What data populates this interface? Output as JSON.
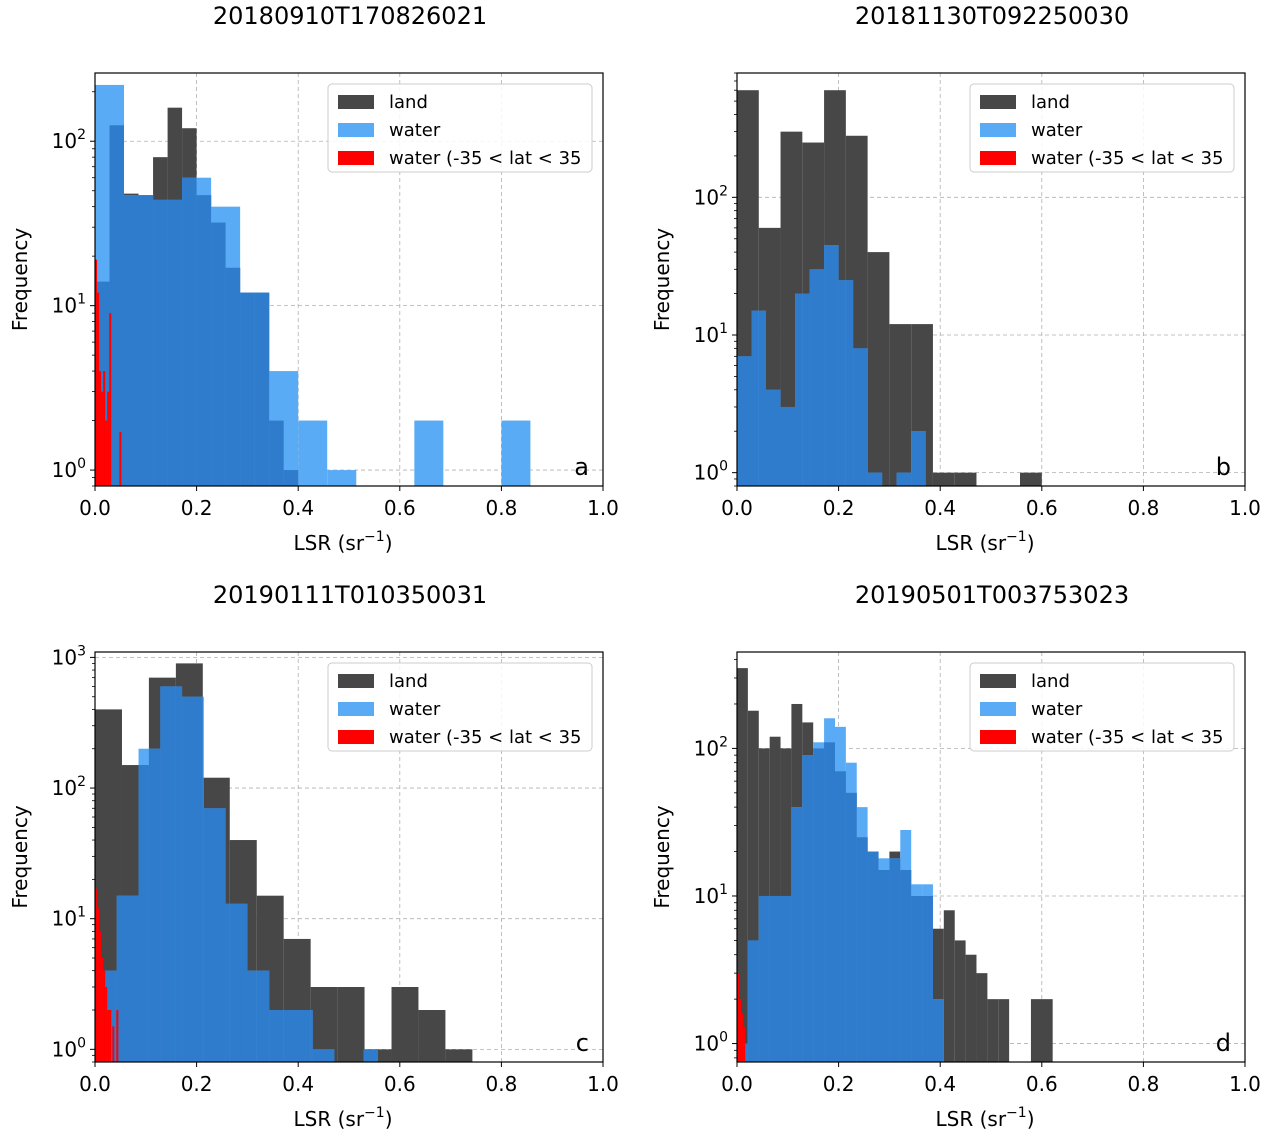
{
  "chart_data": [
    {
      "type": "bar",
      "title": "20180910T170826021",
      "panel_label": "a",
      "xlabel": "LSR (sr",
      "xlabel_sup": "−1",
      "xlabel_close": ")",
      "ylabel": "Frequency",
      "xlim": [
        0,
        1.0
      ],
      "ylim_log": [
        0.8,
        260
      ],
      "y_scale": "log",
      "grid": true,
      "legend_position": "top-right",
      "x_ticks": [
        "0.0",
        "0.2",
        "0.4",
        "0.6",
        "0.8",
        "1.0"
      ],
      "y_ticks": [
        {
          "base": "10",
          "exp": "0",
          "value": 1
        },
        {
          "base": "10",
          "exp": "1",
          "value": 10
        },
        {
          "base": "10",
          "exp": "2",
          "value": 100
        }
      ],
      "series": [
        {
          "name": "land",
          "color": "#474747",
          "bins": [
            [
              0.0,
              0.0286,
              14
            ],
            [
              0.0286,
              0.0571,
              125
            ],
            [
              0.0571,
              0.0857,
              48
            ],
            [
              0.0857,
              0.1143,
              47
            ],
            [
              0.1143,
              0.1429,
              80
            ],
            [
              0.1429,
              0.1714,
              160
            ],
            [
              0.1714,
              0.2,
              120
            ],
            [
              0.2,
              0.2286,
              47
            ],
            [
              0.2286,
              0.2571,
              32
            ],
            [
              0.2571,
              0.2857,
              17
            ],
            [
              0.2857,
              0.3143,
              12
            ],
            [
              0.3143,
              0.3429,
              12
            ],
            [
              0.3429,
              0.3714,
              2
            ],
            [
              0.3714,
              0.4,
              1
            ]
          ]
        },
        {
          "name": "water",
          "color": "#5aabf5",
          "bins": [
            [
              0.0,
              0.0571,
              220
            ],
            [
              0.0571,
              0.1143,
              47
            ],
            [
              0.1143,
              0.1714,
              44
            ],
            [
              0.1714,
              0.2286,
              60
            ],
            [
              0.2286,
              0.2857,
              40
            ],
            [
              0.2857,
              0.3429,
              12
            ],
            [
              0.3429,
              0.4,
              4
            ],
            [
              0.4,
              0.4571,
              2
            ],
            [
              0.4571,
              0.5143,
              1
            ],
            [
              0.6286,
              0.6857,
              2
            ],
            [
              0.8,
              0.8571,
              2
            ]
          ]
        },
        {
          "name": "water (-35 < lat < 35",
          "color": "#ff0000",
          "bins": [
            [
              0.0,
              0.004,
              19
            ],
            [
              0.004,
              0.008,
              12
            ],
            [
              0.008,
              0.012,
              4
            ],
            [
              0.012,
              0.016,
              3
            ],
            [
              0.016,
              0.02,
              4
            ],
            [
              0.02,
              0.024,
              2
            ],
            [
              0.024,
              0.028,
              3
            ],
            [
              0.028,
              0.032,
              9
            ],
            [
              0.048,
              0.052,
              1.7
            ]
          ]
        }
      ]
    },
    {
      "type": "bar",
      "title": "20181130T092250030",
      "panel_label": "b",
      "xlabel": "LSR (sr",
      "xlabel_sup": "−1",
      "xlabel_close": ")",
      "ylabel": "Frequency",
      "xlim": [
        0,
        1.0
      ],
      "ylim_log": [
        0.8,
        800
      ],
      "y_scale": "log",
      "grid": true,
      "legend_position": "top-right",
      "x_ticks": [
        "0.0",
        "0.2",
        "0.4",
        "0.6",
        "0.8",
        "1.0"
      ],
      "y_ticks": [
        {
          "base": "10",
          "exp": "0",
          "value": 1
        },
        {
          "base": "10",
          "exp": "1",
          "value": 10
        },
        {
          "base": "10",
          "exp": "2",
          "value": 100
        }
      ],
      "series": [
        {
          "name": "land",
          "color": "#474747",
          "bins": [
            [
              0.0,
              0.0429,
              600
            ],
            [
              0.0429,
              0.0857,
              60
            ],
            [
              0.0857,
              0.1286,
              300
            ],
            [
              0.1286,
              0.1714,
              250
            ],
            [
              0.1714,
              0.2143,
              600
            ],
            [
              0.2143,
              0.2571,
              280
            ],
            [
              0.2571,
              0.3,
              40
            ],
            [
              0.3,
              0.3429,
              12
            ],
            [
              0.3429,
              0.3857,
              12
            ],
            [
              0.3857,
              0.4286,
              1
            ],
            [
              0.4286,
              0.4714,
              1
            ],
            [
              0.5571,
              0.6,
              1
            ]
          ]
        },
        {
          "name": "water",
          "color": "#5aabf5",
          "bins": [
            [
              0.0,
              0.0286,
              7
            ],
            [
              0.0286,
              0.0571,
              15
            ],
            [
              0.0571,
              0.0857,
              4
            ],
            [
              0.0857,
              0.1143,
              3
            ],
            [
              0.1143,
              0.1429,
              20
            ],
            [
              0.1429,
              0.1714,
              30
            ],
            [
              0.1714,
              0.2,
              45
            ],
            [
              0.2,
              0.2286,
              25
            ],
            [
              0.2286,
              0.2571,
              8
            ],
            [
              0.2571,
              0.2857,
              1
            ],
            [
              0.3143,
              0.3429,
              1
            ],
            [
              0.3429,
              0.3714,
              2
            ]
          ]
        },
        {
          "name": "water (-35 < lat < 35",
          "color": "#ff0000",
          "bins": []
        }
      ]
    },
    {
      "type": "bar",
      "title": "20190111T010350031",
      "panel_label": "c",
      "xlabel": "LSR (sr",
      "xlabel_sup": "−1",
      "xlabel_close": ")",
      "ylabel": "Frequency",
      "xlim": [
        0,
        1.0
      ],
      "ylim_log": [
        0.8,
        1100
      ],
      "y_scale": "log",
      "grid": true,
      "legend_position": "top-right",
      "x_ticks": [
        "0.0",
        "0.2",
        "0.4",
        "0.6",
        "0.8",
        "1.0"
      ],
      "y_ticks": [
        {
          "base": "10",
          "exp": "0",
          "value": 1
        },
        {
          "base": "10",
          "exp": "1",
          "value": 10
        },
        {
          "base": "10",
          "exp": "2",
          "value": 100
        },
        {
          "base": "10",
          "exp": "3",
          "value": 1000
        }
      ],
      "series": [
        {
          "name": "land",
          "color": "#474747",
          "bins": [
            [
              0.0,
              0.0531,
              400
            ],
            [
              0.0531,
              0.1061,
              150
            ],
            [
              0.1061,
              0.1592,
              700
            ],
            [
              0.1592,
              0.2122,
              900
            ],
            [
              0.2122,
              0.2653,
              120
            ],
            [
              0.2653,
              0.3184,
              40
            ],
            [
              0.3184,
              0.3714,
              15
            ],
            [
              0.3714,
              0.4245,
              7
            ],
            [
              0.4245,
              0.4776,
              3
            ],
            [
              0.4776,
              0.5306,
              3
            ],
            [
              0.5306,
              0.5837,
              1
            ],
            [
              0.5837,
              0.6367,
              3
            ],
            [
              0.6367,
              0.6898,
              2
            ],
            [
              0.6898,
              0.7429,
              1
            ]
          ]
        },
        {
          "name": "water",
          "color": "#5aabf5",
          "bins": [
            [
              0.0,
              0.0429,
              4
            ],
            [
              0.0429,
              0.0857,
              15
            ],
            [
              0.0857,
              0.1286,
              200
            ],
            [
              0.1286,
              0.1714,
              600
            ],
            [
              0.1714,
              0.2143,
              500
            ],
            [
              0.2143,
              0.2571,
              70
            ],
            [
              0.2571,
              0.3,
              13
            ],
            [
              0.3,
              0.3429,
              4
            ],
            [
              0.3429,
              0.3857,
              2
            ],
            [
              0.3857,
              0.4286,
              2
            ],
            [
              0.4286,
              0.4714,
              1
            ],
            [
              0.5286,
              0.5571,
              1
            ]
          ]
        },
        {
          "name": "water (-35 < lat < 35",
          "color": "#ff0000",
          "bins": [
            [
              0.0,
              0.004,
              17
            ],
            [
              0.004,
              0.008,
              12
            ],
            [
              0.008,
              0.012,
              8
            ],
            [
              0.012,
              0.016,
              5
            ],
            [
              0.016,
              0.02,
              4
            ],
            [
              0.02,
              0.024,
              3
            ],
            [
              0.024,
              0.028,
              2
            ],
            [
              0.028,
              0.032,
              2
            ],
            [
              0.034,
              0.038,
              1.5
            ],
            [
              0.042,
              0.046,
              2
            ]
          ]
        }
      ]
    },
    {
      "type": "bar",
      "title": "20190501T003753023",
      "panel_label": "d",
      "xlabel": "LSR (sr",
      "xlabel_sup": "−1",
      "xlabel_close": ")",
      "ylabel": "Frequency",
      "xlim": [
        0,
        1.0
      ],
      "ylim_log": [
        0.75,
        450
      ],
      "y_scale": "log",
      "grid": true,
      "legend_position": "top-right",
      "x_ticks": [
        "0.0",
        "0.2",
        "0.4",
        "0.6",
        "0.8",
        "1.0"
      ],
      "y_ticks": [
        {
          "base": "10",
          "exp": "0",
          "value": 1
        },
        {
          "base": "10",
          "exp": "1",
          "value": 10
        },
        {
          "base": "10",
          "exp": "2",
          "value": 100
        }
      ],
      "series": [
        {
          "name": "land",
          "color": "#474747",
          "bins": [
            [
              0.0,
              0.0214,
              350
            ],
            [
              0.0214,
              0.0429,
              180
            ],
            [
              0.0429,
              0.0643,
              100
            ],
            [
              0.0643,
              0.0857,
              120
            ],
            [
              0.0857,
              0.1071,
              100
            ],
            [
              0.1071,
              0.1286,
              200
            ],
            [
              0.1286,
              0.15,
              150
            ],
            [
              0.15,
              0.1714,
              100
            ],
            [
              0.1714,
              0.1929,
              110
            ],
            [
              0.1929,
              0.2143,
              70
            ],
            [
              0.2143,
              0.2357,
              50
            ],
            [
              0.2357,
              0.2571,
              25
            ],
            [
              0.2571,
              0.2786,
              20
            ],
            [
              0.2786,
              0.3,
              15
            ],
            [
              0.3,
              0.3214,
              20
            ],
            [
              0.3214,
              0.3429,
              15
            ],
            [
              0.3429,
              0.3643,
              10
            ],
            [
              0.3643,
              0.3857,
              10
            ],
            [
              0.3857,
              0.4071,
              6
            ],
            [
              0.4071,
              0.4286,
              8
            ],
            [
              0.4286,
              0.45,
              5
            ],
            [
              0.45,
              0.4714,
              4
            ],
            [
              0.4714,
              0.4929,
              3
            ],
            [
              0.4929,
              0.5143,
              2
            ],
            [
              0.5143,
              0.5357,
              2
            ],
            [
              0.5786,
              0.6214,
              2
            ]
          ]
        },
        {
          "name": "water",
          "color": "#5aabf5",
          "bins": [
            [
              0.0,
              0.0214,
              1
            ],
            [
              0.0214,
              0.0429,
              5
            ],
            [
              0.0429,
              0.0643,
              10
            ],
            [
              0.0643,
              0.0857,
              10
            ],
            [
              0.0857,
              0.1071,
              10
            ],
            [
              0.1071,
              0.1286,
              40
            ],
            [
              0.1286,
              0.15,
              90
            ],
            [
              0.15,
              0.1714,
              110
            ],
            [
              0.1714,
              0.1929,
              160
            ],
            [
              0.1929,
              0.2143,
              140
            ],
            [
              0.2143,
              0.2357,
              80
            ],
            [
              0.2357,
              0.2571,
              40
            ],
            [
              0.2571,
              0.2786,
              20
            ],
            [
              0.2786,
              0.3,
              18
            ],
            [
              0.3,
              0.3214,
              18
            ],
            [
              0.3214,
              0.3429,
              28
            ],
            [
              0.3429,
              0.3643,
              12
            ],
            [
              0.3643,
              0.3857,
              12
            ],
            [
              0.3857,
              0.4071,
              2
            ]
          ]
        },
        {
          "name": "water (-35 < lat < 35",
          "color": "#ff0000",
          "bins": [
            [
              0.0,
              0.004,
              3
            ],
            [
              0.004,
              0.008,
              2
            ],
            [
              0.008,
              0.012,
              1.6
            ],
            [
              0.012,
              0.016,
              1.3
            ]
          ]
        }
      ]
    }
  ]
}
